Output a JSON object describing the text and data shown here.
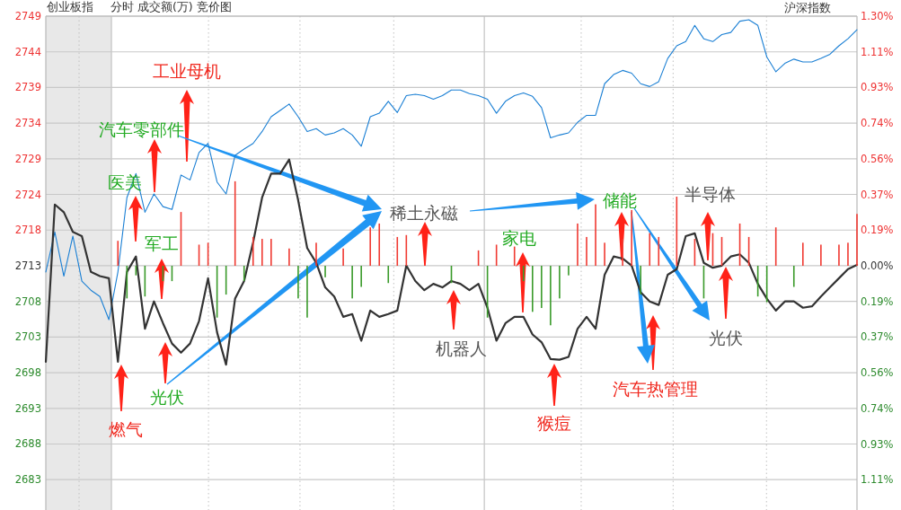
{
  "chart_data": {
    "type": "line",
    "title": "创业板指",
    "subtitle": "分时 成交额(万) 竞价图",
    "categories": [
      null,
      null,
      null,
      null,
      null,
      null,
      null,
      null,
      null,
      null,
      null,
      null,
      null,
      null,
      null,
      null,
      null,
      null,
      null,
      null,
      null,
      null,
      null,
      null,
      null,
      null,
      null,
      null,
      null,
      null,
      null,
      null,
      null,
      null,
      null,
      null,
      null,
      null,
      null,
      null,
      null,
      null,
      null,
      null,
      null,
      null,
      null,
      null,
      null,
      null,
      null,
      null,
      null,
      null,
      null,
      null,
      null,
      null,
      null,
      null,
      null,
      null,
      null,
      null,
      null,
      null,
      null,
      null,
      null,
      null,
      null,
      null,
      null,
      null,
      null,
      null,
      null,
      null,
      null,
      null,
      null,
      null,
      null,
      null,
      null,
      null,
      null,
      null,
      null,
      null,
      null
    ],
    "series": [
      {
        "color": "#1a7fd4",
        "values": [
          2712.5,
          2718.2,
          2711.9,
          2717.6,
          2711.2,
          2709.9,
          2709.0,
          2705.7,
          2712.5,
          2723.1,
          2726.5,
          2721.0,
          2723.6,
          2721.8,
          2721.4,
          2726.3,
          2725.6,
          2729.5,
          2730.8,
          2725.3,
          2723.6,
          2729.1,
          2730.0,
          2730.8,
          2732.5,
          2734.6,
          2735.5,
          2736.4,
          2734.6,
          2732.5,
          2732.9,
          2732.0,
          2732.3,
          2732.9,
          2732.0,
          2730.4,
          2734.6,
          2735.1,
          2736.8,
          2735.2,
          2737.6,
          2737.8,
          2737.6,
          2737.1,
          2737.6,
          2738.4,
          2738.4,
          2737.9,
          2737.6,
          2737.1,
          2735.1,
          2736.8,
          2737.6,
          2738.0,
          2737.5,
          2735.9,
          2731.6,
          2732.0,
          2732.3,
          2733.8,
          2734.8,
          2734.8,
          2739.3,
          2740.6,
          2741.2,
          2740.8,
          2739.3,
          2738.9,
          2739.6,
          2742.9,
          2744.7,
          2745.3,
          2747.6,
          2745.7,
          2745.3,
          2746.3,
          2746.6,
          2748.2,
          2748.4,
          2747.6,
          2743.1,
          2741.0,
          2742.2,
          2742.8,
          2742.4,
          2742.4,
          2742.9,
          2743.5,
          2744.7,
          2745.7,
          2747.0
        ]
      },
      {
        "color": "#333333",
        "values": [
          2699.7,
          2722.1,
          2721.0,
          2718.2,
          2717.6,
          2712.5,
          2711.9,
          2711.6,
          2699.7,
          2712.5,
          2714.7,
          2704.4,
          2708.3,
          2705.2,
          2702.3,
          2701.0,
          2702.3,
          2705.5,
          2711.6,
          2703.9,
          2699.3,
          2708.7,
          2711.2,
          2716.7,
          2723.1,
          2726.5,
          2726.5,
          2728.5,
          2722.7,
          2715.9,
          2713.8,
          2710.3,
          2709.0,
          2706.1,
          2706.5,
          2702.7,
          2707.0,
          2706.1,
          2706.5,
          2707.0,
          2713.4,
          2711.2,
          2709.9,
          2710.8,
          2710.3,
          2711.2,
          2710.8,
          2709.9,
          2710.8,
          2707.4,
          2702.7,
          2705.2,
          2706.1,
          2706.1,
          2703.6,
          2702.5,
          2700.1,
          2700.0,
          2700.4,
          2704.4,
          2706.1,
          2704.4,
          2712.1,
          2714.7,
          2714.4,
          2713.4,
          2709.6,
          2708.3,
          2707.8,
          2712.1,
          2712.9,
          2717.6,
          2718.0,
          2713.8,
          2713.1,
          2713.4,
          2714.7,
          2715.0,
          2713.8,
          2710.8,
          2708.7,
          2707.0,
          2708.3,
          2708.3,
          2707.4,
          2707.6,
          2709.0,
          2710.3,
          2711.6,
          2712.9,
          2713.5
        ]
      },
      {
        "type": "bar",
        "axis": "y2",
        "values": [
          null,
          null,
          null,
          null,
          null,
          null,
          null,
          null,
          0.13,
          -0.17,
          -0.05,
          -0.16,
          null,
          -0.08,
          -0.08,
          0.28,
          null,
          0.11,
          0.12,
          -0.27,
          -0.15,
          0.44,
          -0.08,
          0.15,
          0.14,
          0.14,
          null,
          0.09,
          -0.17,
          -0.27,
          0.12,
          -0.06,
          null,
          0.09,
          -0.17,
          -0.11,
          0.2,
          0.22,
          -0.09,
          0.15,
          0.16,
          null,
          null,
          null,
          null,
          -0.09,
          null,
          null,
          0.08,
          -0.27,
          0.11,
          null,
          0.1,
          -0.08,
          -0.24,
          -0.22,
          -0.31,
          -0.17,
          -0.05,
          0.22,
          0.15,
          0.32,
          0.12,
          null,
          0.14,
          0.29,
          -0.15,
          0.17,
          0.15,
          null,
          0.36,
          null,
          0.14,
          -0.17,
          0.17,
          0.15,
          null,
          0.22,
          0.15,
          -0.16,
          -0.19,
          0.2,
          null,
          -0.11,
          0.12,
          null,
          0.11,
          null,
          0.11,
          0.12,
          0.27
        ],
        "colors": [
          null,
          null,
          null,
          null,
          null,
          null,
          null,
          null,
          "#f03a32",
          "#3a9a2a",
          "#3a9a2a",
          "#3a9a2a",
          null,
          "#3a9a2a",
          "#3a9a2a",
          "#f03a32",
          null,
          "#f03a32",
          "#f03a32",
          "#3a9a2a",
          "#3a9a2a",
          "#f03a32",
          "#3a9a2a",
          "#f03a32",
          "#f03a32",
          "#f03a32",
          null,
          "#f03a32",
          "#3a9a2a",
          "#3a9a2a",
          "#f03a32",
          "#3a9a2a",
          null,
          "#f03a32",
          "#3a9a2a",
          "#3a9a2a",
          "#f03a32",
          "#f03a32",
          "#3a9a2a",
          "#f03a32",
          "#f03a32",
          null,
          null,
          null,
          null,
          "#3a9a2a",
          null,
          null,
          "#f03a32",
          "#3a9a2a",
          "#f03a32",
          null,
          "#f03a32",
          "#3a9a2a",
          "#3a9a2a",
          "#3a9a2a",
          "#3a9a2a",
          "#3a9a2a",
          "#3a9a2a",
          "#f03a32",
          "#f03a32",
          "#f03a32",
          "#f03a32",
          null,
          "#f03a32",
          "#f03a32",
          "#3a9a2a",
          "#f03a32",
          "#f03a32",
          null,
          "#f03a32",
          null,
          "#f03a32",
          "#3a9a2a",
          "#f03a32",
          "#f03a32",
          null,
          "#f03a32",
          "#f03a32",
          "#3a9a2a",
          "#3a9a2a",
          "#f03a32",
          null,
          "#3a9a2a",
          "#f03a32",
          null,
          "#f03a32",
          null,
          "#f03a32",
          "#f03a32",
          "#f03a32"
        ]
      }
    ],
    "ylim": [
      2678.6,
      2748.92
    ],
    "yticks": [
      {
        "value": 2682.92,
        "label": "2683"
      },
      {
        "value": 2688.0,
        "label": "2688"
      },
      {
        "value": 2693.07,
        "label": "2693"
      },
      {
        "value": 2698.15,
        "label": "2698"
      },
      {
        "value": 2703.23,
        "label": "2703"
      },
      {
        "value": 2708.31,
        "label": "2708"
      },
      {
        "value": 2713.38,
        "label": "2713"
      },
      {
        "value": 2718.46,
        "label": "2718"
      },
      {
        "value": 2723.54,
        "label": "2724"
      },
      {
        "value": 2728.61,
        "label": "2729"
      },
      {
        "value": 2733.69,
        "label": "2734"
      },
      {
        "value": 2738.77,
        "label": "2739"
      },
      {
        "value": 2743.84,
        "label": "2744"
      },
      {
        "value": 2748.92,
        "label": "2749"
      }
    ],
    "y2lim": [
      -1.272,
      1.3
    ],
    "y2ticks": [
      {
        "value": -1.1143,
        "label": "1.11%"
      },
      {
        "value": -0.9286,
        "label": "0.93%"
      },
      {
        "value": -0.7429,
        "label": "0.74%"
      },
      {
        "value": -0.5571,
        "label": "0.56%"
      },
      {
        "value": -0.3714,
        "label": "0.37%"
      },
      {
        "value": -0.1857,
        "label": "0.19%"
      },
      {
        "value": 0,
        "label": "0.00%"
      },
      {
        "value": 0.1857,
        "label": "0.19%"
      },
      {
        "value": 0.3714,
        "label": "0.37%"
      },
      {
        "value": 0.5571,
        "label": "0.56%"
      },
      {
        "value": 0.7429,
        "label": "0.74%"
      },
      {
        "value": 0.9286,
        "label": "0.93%"
      },
      {
        "value": 1.1143,
        "label": "1.11%"
      },
      {
        "value": 1.3,
        "label": "1.30%"
      }
    ],
    "grid": "y",
    "marker": "none",
    "annotations": [
      "工业母机",
      "汽车零部件",
      "医美",
      "军工",
      "燃气",
      "光伏",
      "稀土永磁",
      "机器人",
      "家电",
      "储能",
      "半导体",
      "光伏",
      "汽车热管理",
      "猴痘",
      "沪深指数"
    ]
  }
}
